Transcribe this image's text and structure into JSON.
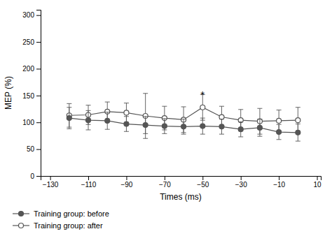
{
  "chart_data": {
    "type": "line",
    "x": [
      -120,
      -110,
      -100,
      -90,
      -80,
      -70,
      -60,
      -50,
      -40,
      -30,
      -20,
      -10,
      0
    ],
    "xlabel": "Times (ms)",
    "ylabel": "MEP (%)",
    "xlim": [
      -135,
      12
    ],
    "ylim": [
      0,
      310
    ],
    "xticks": [
      {
        "value": -130,
        "label": "−130"
      },
      {
        "value": -110,
        "label": "−110"
      },
      {
        "value": -90,
        "label": "−90"
      },
      {
        "value": -70,
        "label": "−70"
      },
      {
        "value": -50,
        "label": "−50"
      },
      {
        "value": -30,
        "label": "−30"
      },
      {
        "value": -10,
        "label": "−10"
      },
      10
    ],
    "yticks": [
      0,
      50,
      100,
      150,
      200,
      250,
      300
    ],
    "series": [
      {
        "name": "Training group: before",
        "color": "#555555",
        "marker": "filled-circle",
        "values": [
          108,
          104,
          103,
          97,
          95,
          93,
          92,
          93,
          92,
          87,
          90,
          82,
          81
        ],
        "errors": [
          20,
          18,
          16,
          14,
          16,
          14,
          14,
          15,
          14,
          14,
          16,
          14,
          16
        ]
      },
      {
        "name": "Training group: after",
        "color": "#555555",
        "marker": "open-circle",
        "values": [
          113,
          114,
          120,
          118,
          112,
          108,
          105,
          128,
          110,
          104,
          102,
          103,
          104
        ],
        "errors": [
          22,
          18,
          18,
          18,
          42,
          22,
          24,
          24,
          20,
          20,
          24,
          20,
          24
        ]
      }
    ],
    "annotations": [
      {
        "text": "*",
        "x": -50,
        "y": 145
      }
    ],
    "grid": false,
    "legend": "bottom"
  }
}
